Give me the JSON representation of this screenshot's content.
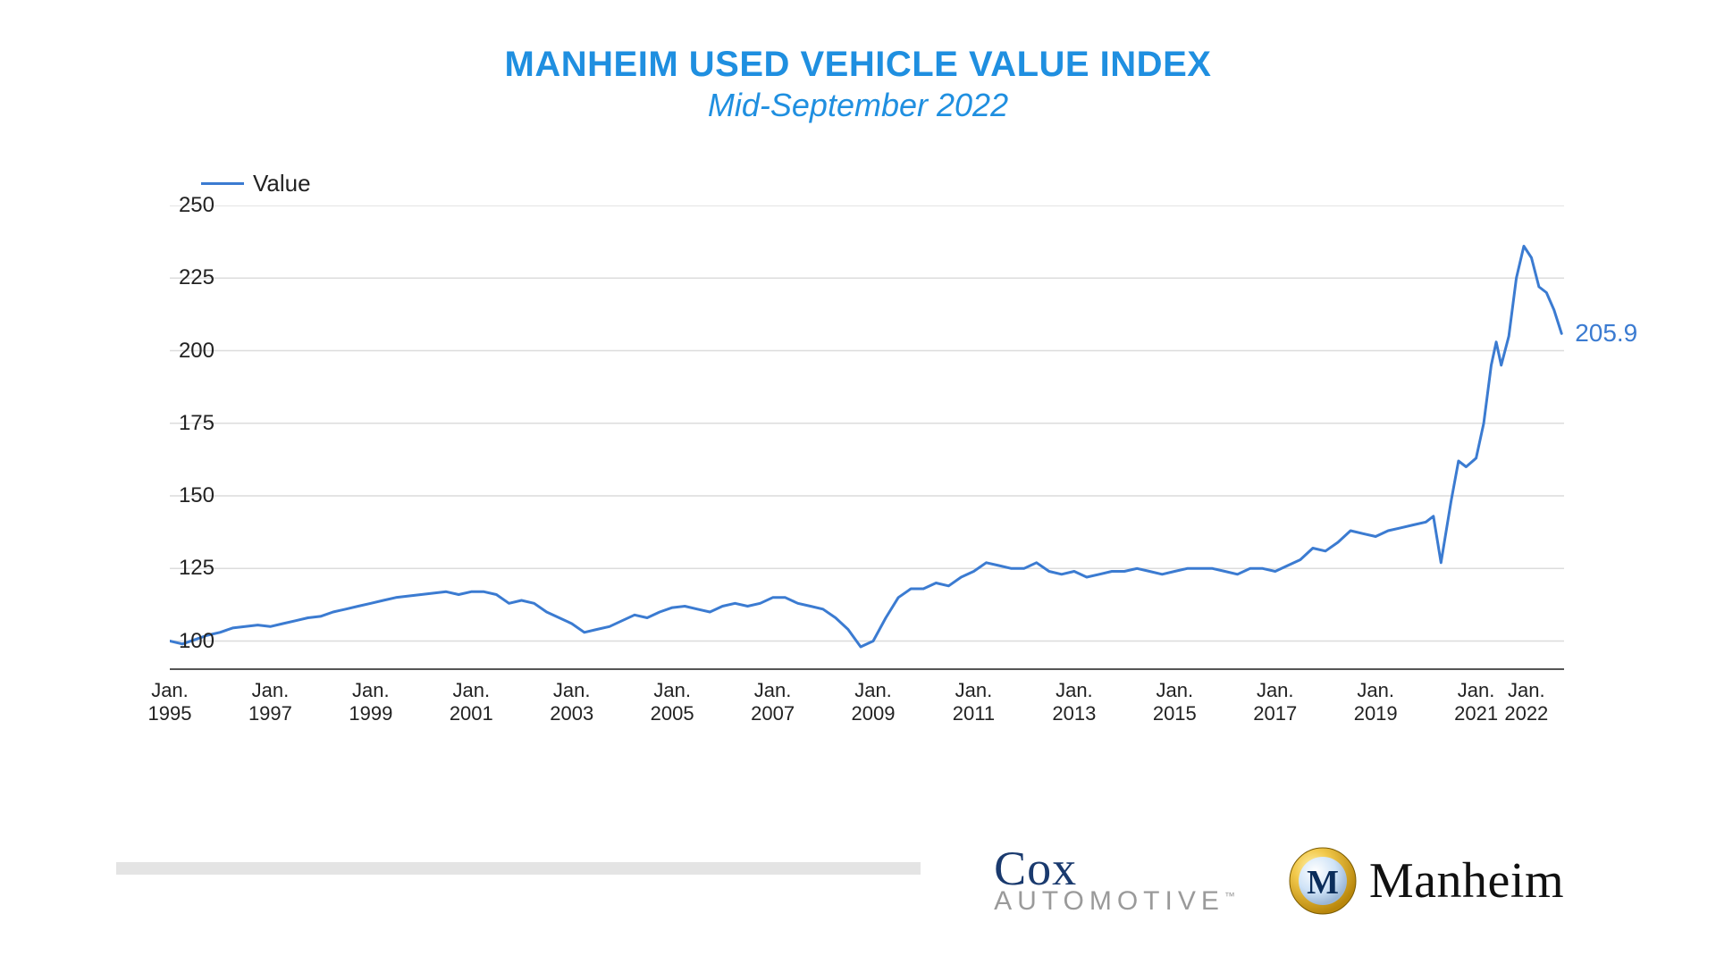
{
  "title": "MANHEIM USED VEHICLE VALUE INDEX",
  "subtitle": "Mid-September 2022",
  "title_color": "#1f8fe0",
  "title_fontsize": 40,
  "subtitle_fontsize": 36,
  "legend_label": "Value",
  "chart": {
    "type": "line",
    "line_color": "#3b7bd1",
    "line_width": 3,
    "end_label_color": "#3b7bd1",
    "background_color": "#ffffff",
    "grid_color": "#dcdcdc",
    "baseline_color": "#555555",
    "axis_label_color": "#222222",
    "ylim": [
      90,
      250
    ],
    "yticks": [
      100,
      125,
      150,
      175,
      200,
      225,
      250
    ],
    "xlim": [
      1995.0,
      2022.75
    ],
    "xticks": [
      {
        "pos": 1995.0,
        "label": "Jan.\n1995"
      },
      {
        "pos": 1997.0,
        "label": "Jan.\n1997"
      },
      {
        "pos": 1999.0,
        "label": "Jan.\n1999"
      },
      {
        "pos": 2001.0,
        "label": "Jan.\n2001"
      },
      {
        "pos": 2003.0,
        "label": "Jan.\n2003"
      },
      {
        "pos": 2005.0,
        "label": "Jan.\n2005"
      },
      {
        "pos": 2007.0,
        "label": "Jan.\n2007"
      },
      {
        "pos": 2009.0,
        "label": "Jan.\n2009"
      },
      {
        "pos": 2011.0,
        "label": "Jan.\n2011"
      },
      {
        "pos": 2013.0,
        "label": "Jan.\n2013"
      },
      {
        "pos": 2015.0,
        "label": "Jan.\n2015"
      },
      {
        "pos": 2017.0,
        "label": "Jan.\n2017"
      },
      {
        "pos": 2019.0,
        "label": "Jan.\n2019"
      },
      {
        "pos": 2021.0,
        "label": "Jan.\n2021"
      },
      {
        "pos": 2022.0,
        "label": "Jan.\n2022"
      }
    ],
    "end_value_label": "205.9",
    "series": [
      {
        "x": 1995.0,
        "y": 100.0
      },
      {
        "x": 1995.25,
        "y": 99.0
      },
      {
        "x": 1995.5,
        "y": 100.5
      },
      {
        "x": 1995.75,
        "y": 102.0
      },
      {
        "x": 1996.0,
        "y": 103.0
      },
      {
        "x": 1996.25,
        "y": 104.5
      },
      {
        "x": 1996.5,
        "y": 105.0
      },
      {
        "x": 1996.75,
        "y": 105.5
      },
      {
        "x": 1997.0,
        "y": 105.0
      },
      {
        "x": 1997.25,
        "y": 106.0
      },
      {
        "x": 1997.5,
        "y": 107.0
      },
      {
        "x": 1997.75,
        "y": 108.0
      },
      {
        "x": 1998.0,
        "y": 108.5
      },
      {
        "x": 1998.25,
        "y": 110.0
      },
      {
        "x": 1998.5,
        "y": 111.0
      },
      {
        "x": 1998.75,
        "y": 112.0
      },
      {
        "x": 1999.0,
        "y": 113.0
      },
      {
        "x": 1999.25,
        "y": 114.0
      },
      {
        "x": 1999.5,
        "y": 115.0
      },
      {
        "x": 1999.75,
        "y": 115.5
      },
      {
        "x": 2000.0,
        "y": 116.0
      },
      {
        "x": 2000.25,
        "y": 116.5
      },
      {
        "x": 2000.5,
        "y": 117.0
      },
      {
        "x": 2000.75,
        "y": 116.0
      },
      {
        "x": 2001.0,
        "y": 117.0
      },
      {
        "x": 2001.25,
        "y": 117.0
      },
      {
        "x": 2001.5,
        "y": 116.0
      },
      {
        "x": 2001.75,
        "y": 113.0
      },
      {
        "x": 2002.0,
        "y": 114.0
      },
      {
        "x": 2002.25,
        "y": 113.0
      },
      {
        "x": 2002.5,
        "y": 110.0
      },
      {
        "x": 2002.75,
        "y": 108.0
      },
      {
        "x": 2003.0,
        "y": 106.0
      },
      {
        "x": 2003.25,
        "y": 103.0
      },
      {
        "x": 2003.5,
        "y": 104.0
      },
      {
        "x": 2003.75,
        "y": 105.0
      },
      {
        "x": 2004.0,
        "y": 107.0
      },
      {
        "x": 2004.25,
        "y": 109.0
      },
      {
        "x": 2004.5,
        "y": 108.0
      },
      {
        "x": 2004.75,
        "y": 110.0
      },
      {
        "x": 2005.0,
        "y": 111.5
      },
      {
        "x": 2005.25,
        "y": 112.0
      },
      {
        "x": 2005.5,
        "y": 111.0
      },
      {
        "x": 2005.75,
        "y": 110.0
      },
      {
        "x": 2006.0,
        "y": 112.0
      },
      {
        "x": 2006.25,
        "y": 113.0
      },
      {
        "x": 2006.5,
        "y": 112.0
      },
      {
        "x": 2006.75,
        "y": 113.0
      },
      {
        "x": 2007.0,
        "y": 115.0
      },
      {
        "x": 2007.25,
        "y": 115.0
      },
      {
        "x": 2007.5,
        "y": 113.0
      },
      {
        "x": 2007.75,
        "y": 112.0
      },
      {
        "x": 2008.0,
        "y": 111.0
      },
      {
        "x": 2008.25,
        "y": 108.0
      },
      {
        "x": 2008.5,
        "y": 104.0
      },
      {
        "x": 2008.75,
        "y": 98.0
      },
      {
        "x": 2009.0,
        "y": 100.0
      },
      {
        "x": 2009.25,
        "y": 108.0
      },
      {
        "x": 2009.5,
        "y": 115.0
      },
      {
        "x": 2009.75,
        "y": 118.0
      },
      {
        "x": 2010.0,
        "y": 118.0
      },
      {
        "x": 2010.25,
        "y": 120.0
      },
      {
        "x": 2010.5,
        "y": 119.0
      },
      {
        "x": 2010.75,
        "y": 122.0
      },
      {
        "x": 2011.0,
        "y": 124.0
      },
      {
        "x": 2011.25,
        "y": 127.0
      },
      {
        "x": 2011.5,
        "y": 126.0
      },
      {
        "x": 2011.75,
        "y": 125.0
      },
      {
        "x": 2012.0,
        "y": 125.0
      },
      {
        "x": 2012.25,
        "y": 127.0
      },
      {
        "x": 2012.5,
        "y": 124.0
      },
      {
        "x": 2012.75,
        "y": 123.0
      },
      {
        "x": 2013.0,
        "y": 124.0
      },
      {
        "x": 2013.25,
        "y": 122.0
      },
      {
        "x": 2013.5,
        "y": 123.0
      },
      {
        "x": 2013.75,
        "y": 124.0
      },
      {
        "x": 2014.0,
        "y": 124.0
      },
      {
        "x": 2014.25,
        "y": 125.0
      },
      {
        "x": 2014.5,
        "y": 124.0
      },
      {
        "x": 2014.75,
        "y": 123.0
      },
      {
        "x": 2015.0,
        "y": 124.0
      },
      {
        "x": 2015.25,
        "y": 125.0
      },
      {
        "x": 2015.5,
        "y": 125.0
      },
      {
        "x": 2015.75,
        "y": 125.0
      },
      {
        "x": 2016.0,
        "y": 124.0
      },
      {
        "x": 2016.25,
        "y": 123.0
      },
      {
        "x": 2016.5,
        "y": 125.0
      },
      {
        "x": 2016.75,
        "y": 125.0
      },
      {
        "x": 2017.0,
        "y": 124.0
      },
      {
        "x": 2017.25,
        "y": 126.0
      },
      {
        "x": 2017.5,
        "y": 128.0
      },
      {
        "x": 2017.75,
        "y": 132.0
      },
      {
        "x": 2018.0,
        "y": 131.0
      },
      {
        "x": 2018.25,
        "y": 134.0
      },
      {
        "x": 2018.5,
        "y": 138.0
      },
      {
        "x": 2018.75,
        "y": 137.0
      },
      {
        "x": 2019.0,
        "y": 136.0
      },
      {
        "x": 2019.25,
        "y": 138.0
      },
      {
        "x": 2019.5,
        "y": 139.0
      },
      {
        "x": 2019.75,
        "y": 140.0
      },
      {
        "x": 2020.0,
        "y": 141.0
      },
      {
        "x": 2020.15,
        "y": 143.0
      },
      {
        "x": 2020.3,
        "y": 127.0
      },
      {
        "x": 2020.5,
        "y": 148.0
      },
      {
        "x": 2020.65,
        "y": 162.0
      },
      {
        "x": 2020.8,
        "y": 160.0
      },
      {
        "x": 2021.0,
        "y": 163.0
      },
      {
        "x": 2021.15,
        "y": 175.0
      },
      {
        "x": 2021.3,
        "y": 195.0
      },
      {
        "x": 2021.4,
        "y": 203.0
      },
      {
        "x": 2021.5,
        "y": 195.0
      },
      {
        "x": 2021.65,
        "y": 205.0
      },
      {
        "x": 2021.8,
        "y": 225.0
      },
      {
        "x": 2021.95,
        "y": 236.0
      },
      {
        "x": 2022.1,
        "y": 232.0
      },
      {
        "x": 2022.25,
        "y": 222.0
      },
      {
        "x": 2022.4,
        "y": 220.0
      },
      {
        "x": 2022.55,
        "y": 214.0
      },
      {
        "x": 2022.7,
        "y": 205.9
      }
    ]
  },
  "logos": {
    "cox_top": "Cox",
    "cox_bottom": "AUTOMOTIVE",
    "cox_tm": "™",
    "manheim": "Manheim"
  }
}
